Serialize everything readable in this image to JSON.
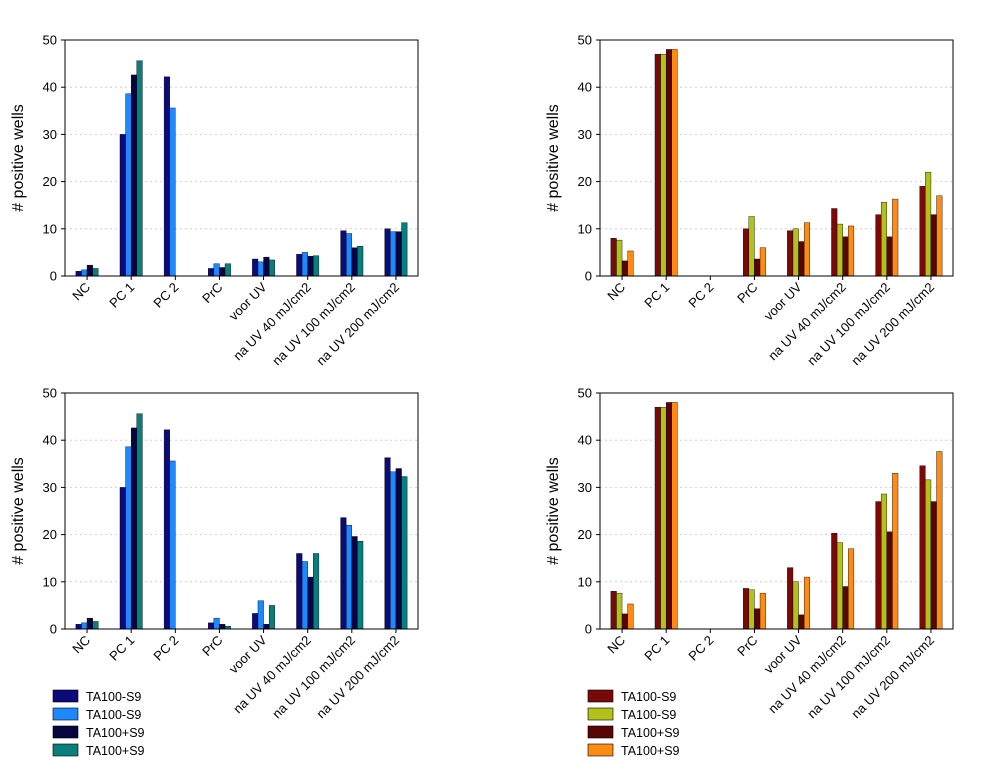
{
  "chart_data": [
    {
      "type": "bar",
      "categories": [
        "NC",
        "PC 1",
        "PC 2",
        "PrC",
        "voor UV",
        "na UV 40 mJ/cm2",
        "na UV 100 mJ/cm2",
        "na UV 200 mJ/cm2"
      ],
      "ylabel": "# positive wells",
      "ylim": [
        0,
        50
      ],
      "yticks": [
        0,
        10,
        20,
        30,
        40,
        50
      ],
      "grid": "horizontal dotted",
      "series": [
        {
          "name": "TA100-S9",
          "color": "#0b0b7a",
          "values": [
            1,
            30,
            42.2,
            1.6,
            3.6,
            4.6,
            9.6,
            10
          ]
        },
        {
          "name": "TA100-S9",
          "color": "#1e88ff",
          "values": [
            1.3,
            38.6,
            35.6,
            2.6,
            3,
            5,
            9,
            9.4
          ]
        },
        {
          "name": "TA100+S9",
          "color": "#050540",
          "values": [
            2.3,
            42.6,
            null,
            1.8,
            4,
            4.2,
            6,
            9.4
          ]
        },
        {
          "name": "TA100+S9",
          "color": "#0a7d7d",
          "values": [
            1.6,
            45.6,
            null,
            2.6,
            3.4,
            4.3,
            6.3,
            11.3
          ]
        }
      ]
    },
    {
      "type": "bar",
      "categories": [
        "NC",
        "PC 1",
        "PC 2",
        "PrC",
        "voor UV",
        "na UV 40 mJ/cm2",
        "na UV 100 mJ/cm2",
        "na UV 200 mJ/cm2"
      ],
      "ylabel": "# positive wells",
      "ylim": [
        0,
        50
      ],
      "yticks": [
        0,
        10,
        20,
        30,
        40,
        50
      ],
      "grid": "horizontal dotted",
      "series": [
        {
          "name": "TA100-S9",
          "color": "#7a0a0a",
          "values": [
            8,
            47,
            null,
            10,
            9.6,
            14.3,
            13,
            19
          ]
        },
        {
          "name": "TA100-S9",
          "color": "#b2c21a",
          "values": [
            7.6,
            47,
            null,
            12.6,
            10,
            11,
            15.6,
            22
          ]
        },
        {
          "name": "TA100+S9",
          "color": "#5a0505",
          "values": [
            3.2,
            48,
            null,
            3.6,
            7.3,
            8.3,
            8.3,
            13
          ]
        },
        {
          "name": "TA100+S9",
          "color": "#ff8a14",
          "values": [
            5.3,
            48,
            null,
            6,
            11.3,
            10.6,
            16.3,
            17
          ]
        }
      ]
    },
    {
      "type": "bar",
      "categories": [
        "NC",
        "PC 1",
        "PC 2",
        "PrC",
        "voor UV",
        "na UV 40 mJ/cm2",
        "na UV 100 mJ/cm2",
        "na UV 200 mJ/cm2"
      ],
      "ylabel": "# positive wells",
      "ylim": [
        0,
        50
      ],
      "yticks": [
        0,
        10,
        20,
        30,
        40,
        50
      ],
      "grid": "horizontal dotted",
      "series": [
        {
          "name": "TA100-S9",
          "color": "#0b0b7a",
          "values": [
            1,
            30,
            42.2,
            1.3,
            3.3,
            16,
            23.6,
            36.3
          ]
        },
        {
          "name": "TA100-S9",
          "color": "#1e88ff",
          "values": [
            1.3,
            38.6,
            35.6,
            2.3,
            6,
            14.3,
            22,
            33.3
          ]
        },
        {
          "name": "TA100+S9",
          "color": "#050540",
          "values": [
            2.3,
            42.6,
            null,
            1,
            1,
            11,
            19.6,
            34
          ]
        },
        {
          "name": "TA100+S9",
          "color": "#0a7d7d",
          "values": [
            1.6,
            45.6,
            null,
            0.6,
            5,
            16,
            18.6,
            32.3
          ]
        }
      ]
    },
    {
      "type": "bar",
      "categories": [
        "NC",
        "PC 1",
        "PC 2",
        "PrC",
        "voor UV",
        "na UV 40 mJ/cm2",
        "na UV 100 mJ/cm2",
        "na UV 200 mJ/cm2"
      ],
      "ylabel": "# positive wells",
      "ylim": [
        0,
        50
      ],
      "yticks": [
        0,
        10,
        20,
        30,
        40,
        50
      ],
      "grid": "horizontal dotted",
      "series": [
        {
          "name": "TA100-S9",
          "color": "#7a0a0a",
          "values": [
            8,
            47,
            null,
            8.6,
            13,
            20.3,
            27,
            34.6
          ]
        },
        {
          "name": "TA100-S9",
          "color": "#b2c21a",
          "values": [
            7.6,
            47,
            null,
            8.3,
            10,
            18.3,
            28.6,
            31.6
          ]
        },
        {
          "name": "TA100+S9",
          "color": "#5a0505",
          "values": [
            3.2,
            48,
            null,
            4.3,
            3,
            9,
            20.6,
            27
          ]
        },
        {
          "name": "TA100+S9",
          "color": "#ff8a14",
          "values": [
            5.3,
            48,
            null,
            7.6,
            11,
            17,
            33,
            37.6
          ]
        }
      ]
    }
  ],
  "legends": [
    {
      "items": [
        {
          "label": "TA100-S9",
          "color": "#0b0b7a"
        },
        {
          "label": "TA100-S9",
          "color": "#1e88ff"
        },
        {
          "label": "TA100+S9",
          "color": "#050540"
        },
        {
          "label": "TA100+S9",
          "color": "#0a7d7d"
        }
      ]
    },
    {
      "items": [
        {
          "label": "TA100-S9",
          "color": "#7a0a0a"
        },
        {
          "label": "TA100-S9",
          "color": "#b2c21a"
        },
        {
          "label": "TA100+S9",
          "color": "#5a0505"
        },
        {
          "label": "TA100+S9",
          "color": "#ff8a14"
        }
      ]
    }
  ]
}
